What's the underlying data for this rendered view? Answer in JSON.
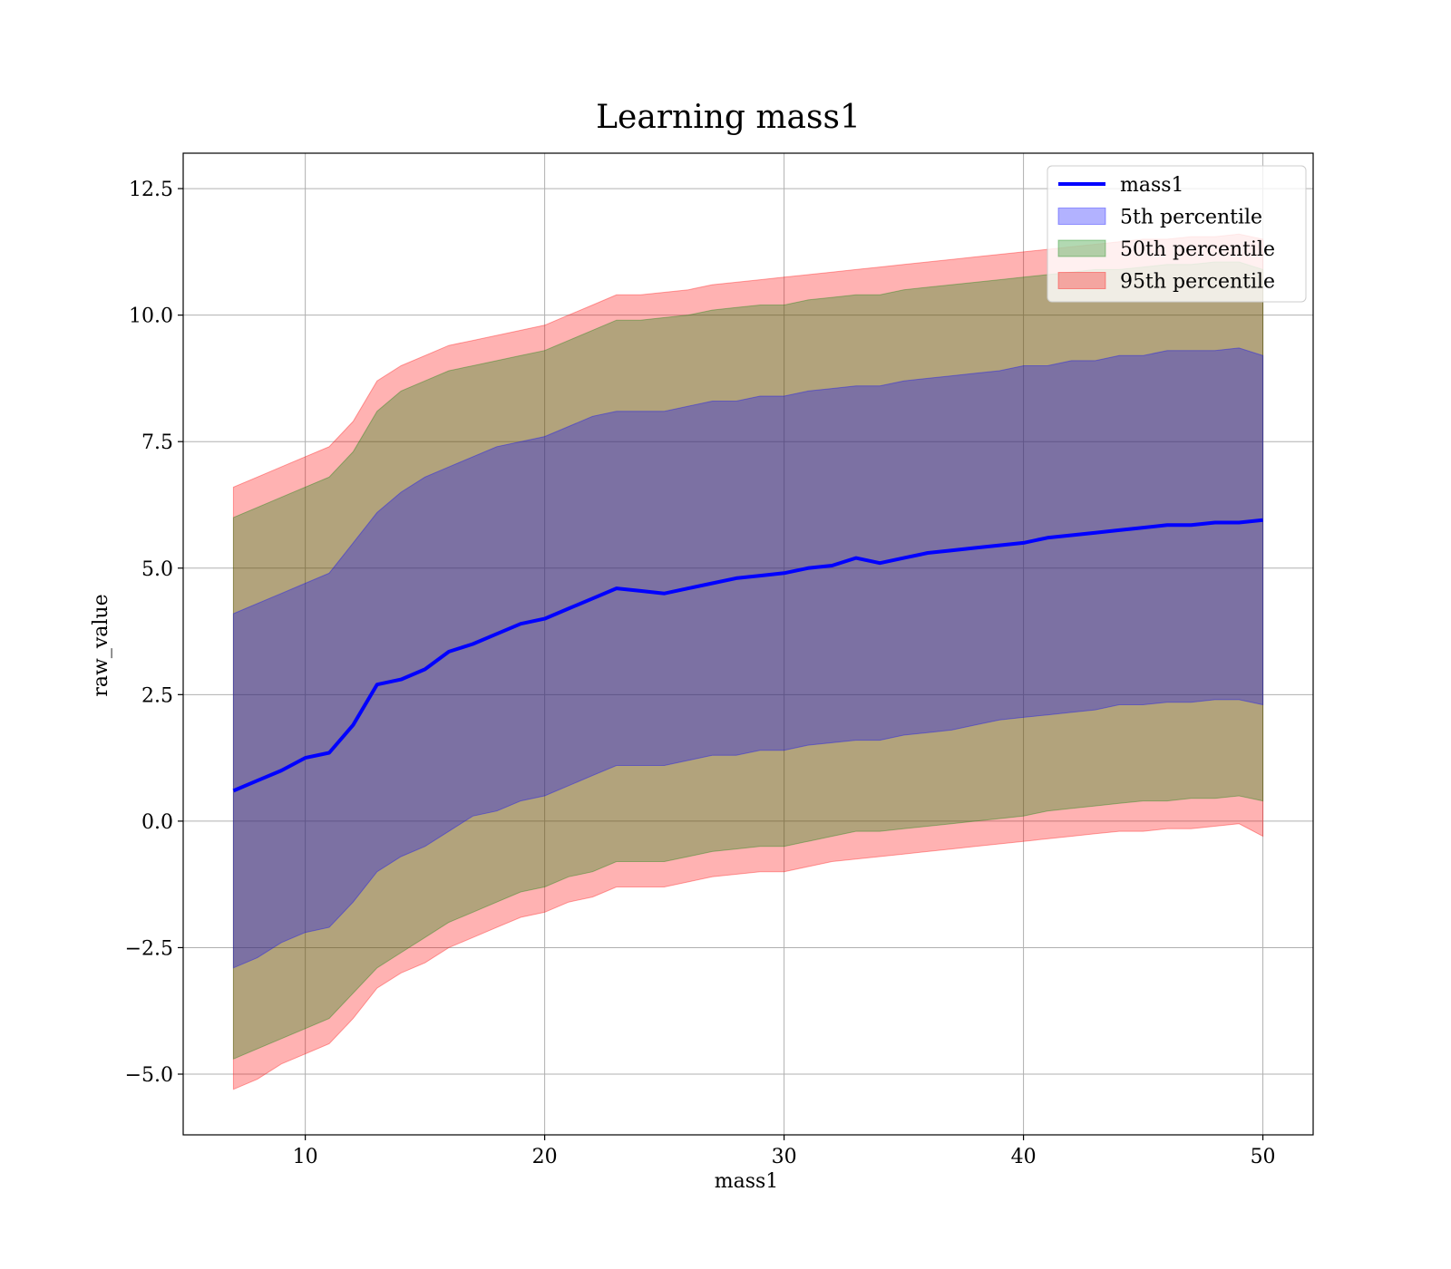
{
  "chart_data": {
    "type": "area",
    "title": "Learning mass1",
    "xlabel": "mass1",
    "ylabel": "raw_value",
    "xlim": [
      4.9,
      52.1
    ],
    "ylim": [
      -6.2,
      13.2
    ],
    "xticks": [
      10,
      20,
      30,
      40,
      50
    ],
    "xtick_labels": [
      "10",
      "20",
      "30",
      "40",
      "50"
    ],
    "yticks": [
      -5.0,
      -2.5,
      0.0,
      2.5,
      5.0,
      7.5,
      10.0,
      12.5
    ],
    "ytick_labels": [
      "−5.0",
      "−2.5",
      "0.0",
      "2.5",
      "5.0",
      "7.5",
      "10.0",
      "12.5"
    ],
    "grid": true,
    "legend": {
      "position": "top-right",
      "entries": [
        "mass1",
        "5th percentile",
        "50th percentile",
        "95th percentile"
      ]
    },
    "x": [
      7,
      8,
      9,
      10,
      11,
      12,
      13,
      14,
      15,
      16,
      17,
      18,
      19,
      20,
      21,
      22,
      23,
      24,
      25,
      26,
      27,
      28,
      29,
      30,
      31,
      32,
      33,
      34,
      35,
      36,
      37,
      38,
      39,
      40,
      41,
      42,
      43,
      44,
      45,
      46,
      47,
      48,
      49,
      50
    ],
    "series": [
      {
        "name": "mass1",
        "style": "line",
        "color": "#0000ff",
        "values": [
          0.6,
          0.8,
          1.0,
          1.25,
          1.35,
          1.9,
          2.7,
          2.8,
          3.0,
          3.35,
          3.5,
          3.7,
          3.9,
          4.0,
          4.2,
          4.4,
          4.6,
          4.55,
          4.5,
          4.6,
          4.7,
          4.8,
          4.85,
          4.9,
          5.0,
          5.05,
          5.2,
          5.1,
          5.2,
          5.3,
          5.35,
          5.4,
          5.45,
          5.5,
          5.6,
          5.65,
          5.7,
          5.75,
          5.8,
          5.85,
          5.85,
          5.9,
          5.9,
          5.95
        ]
      },
      {
        "name": "5th percentile",
        "style": "band",
        "color": "#0000ff",
        "lower": [
          -2.9,
          -2.7,
          -2.4,
          -2.2,
          -2.1,
          -1.6,
          -1.0,
          -0.7,
          -0.5,
          -0.2,
          0.1,
          0.2,
          0.4,
          0.5,
          0.7,
          0.9,
          1.1,
          1.1,
          1.1,
          1.2,
          1.3,
          1.3,
          1.4,
          1.4,
          1.5,
          1.55,
          1.6,
          1.6,
          1.7,
          1.75,
          1.8,
          1.9,
          2.0,
          2.05,
          2.1,
          2.15,
          2.2,
          2.3,
          2.3,
          2.35,
          2.35,
          2.4,
          2.4,
          2.3
        ],
        "upper": [
          4.1,
          4.3,
          4.5,
          4.7,
          4.9,
          5.5,
          6.1,
          6.5,
          6.8,
          7.0,
          7.2,
          7.4,
          7.5,
          7.6,
          7.8,
          8.0,
          8.1,
          8.1,
          8.1,
          8.2,
          8.3,
          8.3,
          8.4,
          8.4,
          8.5,
          8.55,
          8.6,
          8.6,
          8.7,
          8.75,
          8.8,
          8.85,
          8.9,
          9.0,
          9.0,
          9.1,
          9.1,
          9.2,
          9.2,
          9.3,
          9.3,
          9.3,
          9.35,
          9.2
        ]
      },
      {
        "name": "50th percentile",
        "style": "band",
        "color": "#008000",
        "lower": [
          -4.7,
          -4.5,
          -4.3,
          -4.1,
          -3.9,
          -3.4,
          -2.9,
          -2.6,
          -2.3,
          -2.0,
          -1.8,
          -1.6,
          -1.4,
          -1.3,
          -1.1,
          -1.0,
          -0.8,
          -0.8,
          -0.8,
          -0.7,
          -0.6,
          -0.55,
          -0.5,
          -0.5,
          -0.4,
          -0.3,
          -0.2,
          -0.2,
          -0.15,
          -0.1,
          -0.05,
          0.0,
          0.05,
          0.1,
          0.2,
          0.25,
          0.3,
          0.35,
          0.4,
          0.4,
          0.45,
          0.45,
          0.5,
          0.4
        ],
        "upper": [
          6.0,
          6.2,
          6.4,
          6.6,
          6.8,
          7.3,
          8.1,
          8.5,
          8.7,
          8.9,
          9.0,
          9.1,
          9.2,
          9.3,
          9.5,
          9.7,
          9.9,
          9.9,
          9.95,
          10.0,
          10.1,
          10.15,
          10.2,
          10.2,
          10.3,
          10.35,
          10.4,
          10.4,
          10.5,
          10.55,
          10.6,
          10.65,
          10.7,
          10.75,
          10.8,
          10.85,
          10.9,
          10.9,
          10.95,
          11.0,
          11.0,
          11.05,
          11.05,
          10.9
        ]
      },
      {
        "name": "95th percentile",
        "style": "band",
        "color": "#ff0000",
        "lower": [
          -5.3,
          -5.1,
          -4.8,
          -4.6,
          -4.4,
          -3.9,
          -3.3,
          -3.0,
          -2.8,
          -2.5,
          -2.3,
          -2.1,
          -1.9,
          -1.8,
          -1.6,
          -1.5,
          -1.3,
          -1.3,
          -1.3,
          -1.2,
          -1.1,
          -1.05,
          -1.0,
          -1.0,
          -0.9,
          -0.8,
          -0.75,
          -0.7,
          -0.65,
          -0.6,
          -0.55,
          -0.5,
          -0.45,
          -0.4,
          -0.35,
          -0.3,
          -0.25,
          -0.2,
          -0.2,
          -0.15,
          -0.15,
          -0.1,
          -0.05,
          -0.3
        ],
        "upper": [
          6.6,
          6.8,
          7.0,
          7.2,
          7.4,
          7.9,
          8.7,
          9.0,
          9.2,
          9.4,
          9.5,
          9.6,
          9.7,
          9.8,
          10.0,
          10.2,
          10.4,
          10.4,
          10.45,
          10.5,
          10.6,
          10.65,
          10.7,
          10.75,
          10.8,
          10.85,
          10.9,
          10.95,
          11.0,
          11.05,
          11.1,
          11.15,
          11.2,
          11.25,
          11.3,
          11.35,
          11.4,
          11.45,
          11.5,
          11.5,
          11.55,
          11.55,
          11.6,
          11.5
        ]
      }
    ]
  }
}
